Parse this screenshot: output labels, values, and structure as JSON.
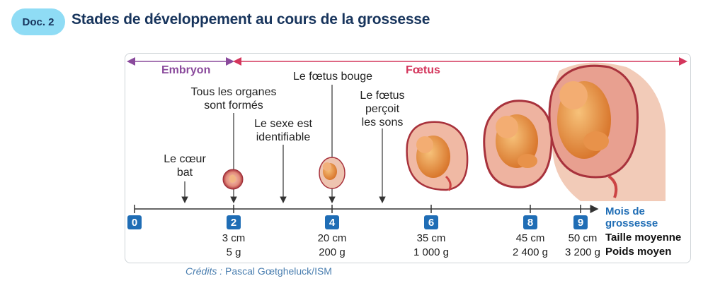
{
  "header": {
    "badge": "Doc. 2",
    "title": "Stades de développement au cours de la grossesse"
  },
  "phases": {
    "embryo": "Embryon",
    "fetus": "Fœtus"
  },
  "events": [
    {
      "id": "coeur",
      "text": "Le cœur\nbat",
      "month": 1
    },
    {
      "id": "organes",
      "text": "Tous les organes\nsont formés",
      "month": 2
    },
    {
      "id": "sexe",
      "text": "Le sexe est\nidentifiable",
      "month": 3
    },
    {
      "id": "bouge",
      "text": "Le fœtus bouge",
      "month": 4
    },
    {
      "id": "sons",
      "text": "Le fœtus\nperçoit\nles sons",
      "month": 5
    }
  ],
  "axis": {
    "ticks": [
      "0",
      "2",
      "4",
      "6",
      "8",
      "9"
    ],
    "legend_months": "Mois de\ngrossesse",
    "legend_size": "Taille moyenne",
    "legend_weight": "Poids moyen"
  },
  "measures": [
    {
      "month": "2",
      "size": "3 cm",
      "weight": "5 g"
    },
    {
      "month": "4",
      "size": "20 cm",
      "weight": "200 g"
    },
    {
      "month": "6",
      "size": "35 cm",
      "weight": "1 000 g"
    },
    {
      "month": "8",
      "size": "45 cm",
      "weight": "2 400 g"
    },
    {
      "month": "9",
      "size": "50 cm",
      "weight": "3 200 g"
    }
  ],
  "credits": {
    "label": "Crédits :",
    "author": "Pascal Gœtgheluck/ISM"
  },
  "colors": {
    "embryo": "#8a4a9c",
    "fetus": "#d4365c",
    "axis_badge": "#1f6db5",
    "title": "#17345c",
    "badge_bg": "#8fdcf5"
  }
}
